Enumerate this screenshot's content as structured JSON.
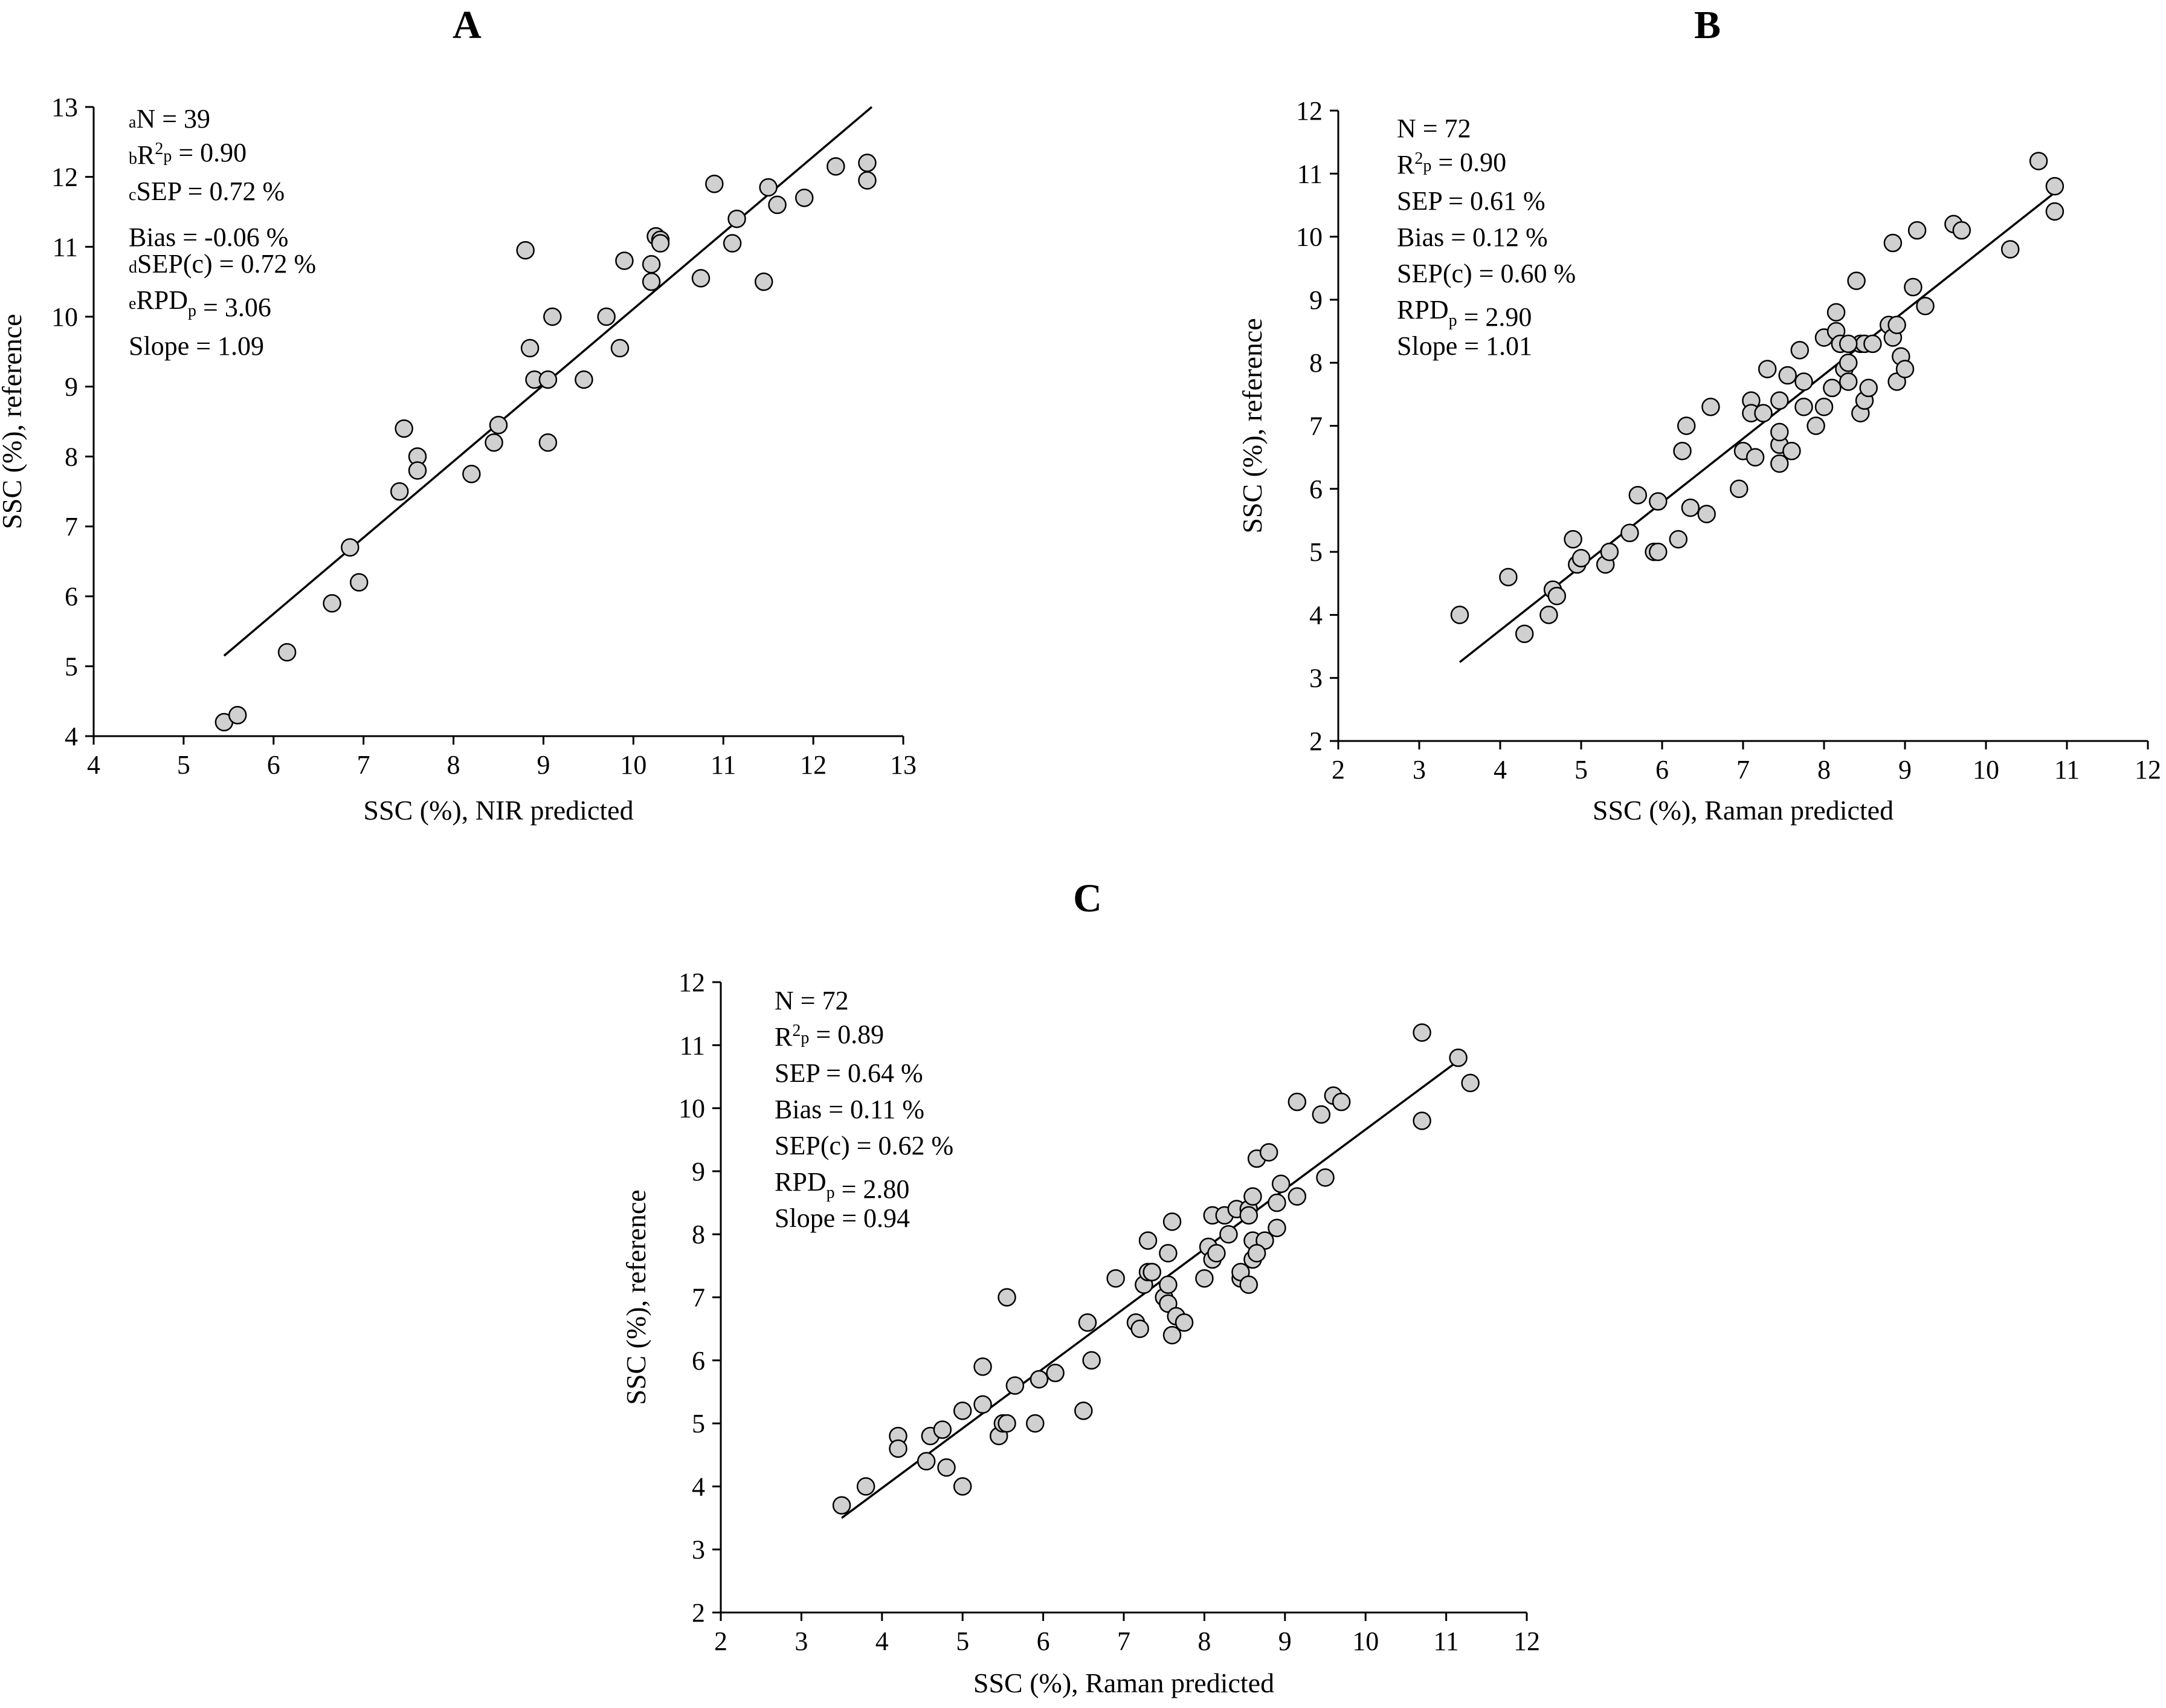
{
  "chart_data": [
    {
      "id": "A",
      "type": "scatter",
      "panel_label": "A",
      "xlabel": "SSC (%), NIR predicted",
      "ylabel": "SSC (%), reference",
      "xlim": [
        4,
        13
      ],
      "ylim": [
        4,
        13
      ],
      "xticks": [
        4,
        5,
        6,
        7,
        8,
        9,
        10,
        11,
        12,
        13
      ],
      "yticks": [
        4,
        5,
        6,
        7,
        8,
        9,
        10,
        11,
        12,
        13
      ],
      "stats": [
        {
          "sup": "a",
          "text": "N = 39"
        },
        {
          "sup": "b",
          "pre": "R",
          "mid_sup": "2",
          "sub": "p",
          "text": " = 0.90"
        },
        {
          "sup": "c",
          "text": "SEP = 0.72 %"
        },
        {
          "text": "Bias = -0.06 %"
        },
        {
          "sup": "d",
          "text": "SEP(c) = 0.72 %"
        },
        {
          "sup": "e",
          "pre": "RPD",
          "sub": "p",
          "text": " = 3.06"
        },
        {
          "text": "Slope = 1.09"
        }
      ],
      "fit_line": {
        "x": [
          5.45,
          12.65
        ],
        "y": [
          5.15,
          13.0
        ]
      },
      "points": [
        [
          5.45,
          4.2
        ],
        [
          5.6,
          4.3
        ],
        [
          6.15,
          5.2
        ],
        [
          6.65,
          5.9
        ],
        [
          6.85,
          6.7
        ],
        [
          6.95,
          6.2
        ],
        [
          7.4,
          7.5
        ],
        [
          7.45,
          8.4
        ],
        [
          7.6,
          8.0
        ],
        [
          7.6,
          7.8
        ],
        [
          8.2,
          7.75
        ],
        [
          8.45,
          8.2
        ],
        [
          8.5,
          8.45
        ],
        [
          8.8,
          10.95
        ],
        [
          8.85,
          9.55
        ],
        [
          8.9,
          9.1
        ],
        [
          9.05,
          8.2
        ],
        [
          9.05,
          9.1
        ],
        [
          9.1,
          10.0
        ],
        [
          9.45,
          9.1
        ],
        [
          9.7,
          10.0
        ],
        [
          9.85,
          9.55
        ],
        [
          9.9,
          10.8
        ],
        [
          10.2,
          10.5
        ],
        [
          10.2,
          10.75
        ],
        [
          10.25,
          11.15
        ],
        [
          10.3,
          11.1
        ],
        [
          10.3,
          11.05
        ],
        [
          10.75,
          10.55
        ],
        [
          10.9,
          11.9
        ],
        [
          11.1,
          11.05
        ],
        [
          11.15,
          11.4
        ],
        [
          11.45,
          10.5
        ],
        [
          11.5,
          11.85
        ],
        [
          11.6,
          11.6
        ],
        [
          11.9,
          11.7
        ],
        [
          12.25,
          12.15
        ],
        [
          12.6,
          12.2
        ],
        [
          12.6,
          11.95
        ]
      ]
    },
    {
      "id": "B",
      "type": "scatter",
      "panel_label": "B",
      "xlabel": "SSC (%), Raman predicted",
      "ylabel": "SSC (%), reference",
      "xlim": [
        2,
        12
      ],
      "ylim": [
        2,
        12
      ],
      "xticks": [
        2,
        3,
        4,
        5,
        6,
        7,
        8,
        9,
        10,
        11,
        12
      ],
      "yticks": [
        2,
        3,
        4,
        5,
        6,
        7,
        8,
        9,
        10,
        11,
        12
      ],
      "stats": [
        {
          "text": "N = 72"
        },
        {
          "pre": "R",
          "mid_sup": "2",
          "sub": "p",
          "text": " = 0.90"
        },
        {
          "text": "SEP = 0.61 %"
        },
        {
          "text": "Bias = 0.12 %"
        },
        {
          "text": "SEP(c) = 0.60 %"
        },
        {
          "pre": "RPD",
          "sub": "p",
          "text": " = 2.90"
        },
        {
          "text": "Slope = 1.01"
        }
      ],
      "fit_line": {
        "x": [
          3.5,
          10.9
        ],
        "y": [
          3.25,
          10.75
        ]
      },
      "points": [
        [
          3.5,
          4.0
        ],
        [
          4.1,
          4.6
        ],
        [
          4.3,
          3.7
        ],
        [
          4.6,
          4.0
        ],
        [
          4.65,
          4.4
        ],
        [
          4.7,
          4.3
        ],
        [
          4.9,
          5.2
        ],
        [
          4.95,
          4.8
        ],
        [
          5.0,
          4.9
        ],
        [
          5.3,
          4.8
        ],
        [
          5.35,
          5.0
        ],
        [
          5.6,
          5.3
        ],
        [
          5.7,
          5.9
        ],
        [
          5.9,
          5.0
        ],
        [
          5.95,
          5.8
        ],
        [
          5.95,
          5.0
        ],
        [
          6.2,
          5.2
        ],
        [
          6.25,
          6.6
        ],
        [
          6.3,
          7.0
        ],
        [
          6.35,
          5.7
        ],
        [
          6.55,
          5.6
        ],
        [
          6.6,
          7.3
        ],
        [
          6.95,
          6.0
        ],
        [
          7.0,
          6.6
        ],
        [
          7.1,
          7.4
        ],
        [
          7.1,
          7.2
        ],
        [
          7.15,
          6.5
        ],
        [
          7.25,
          7.2
        ],
        [
          7.3,
          7.9
        ],
        [
          7.45,
          7.4
        ],
        [
          7.45,
          6.7
        ],
        [
          7.45,
          6.9
        ],
        [
          7.45,
          6.4
        ],
        [
          7.55,
          7.8
        ],
        [
          7.6,
          6.6
        ],
        [
          7.7,
          8.2
        ],
        [
          7.75,
          7.3
        ],
        [
          7.75,
          7.7
        ],
        [
          7.9,
          7.0
        ],
        [
          8.0,
          8.4
        ],
        [
          8.0,
          7.3
        ],
        [
          8.1,
          7.6
        ],
        [
          8.15,
          8.5
        ],
        [
          8.15,
          8.8
        ],
        [
          8.2,
          8.3
        ],
        [
          8.25,
          7.9
        ],
        [
          8.3,
          8.0
        ],
        [
          8.3,
          7.7
        ],
        [
          8.4,
          9.3
        ],
        [
          8.45,
          8.3
        ],
        [
          8.45,
          7.2
        ],
        [
          8.5,
          7.4
        ],
        [
          8.5,
          8.3
        ],
        [
          8.55,
          7.6
        ],
        [
          8.6,
          8.3
        ],
        [
          8.8,
          8.6
        ],
        [
          8.85,
          8.4
        ],
        [
          8.85,
          9.9
        ],
        [
          8.9,
          7.7
        ],
        [
          8.9,
          8.6
        ],
        [
          8.95,
          8.1
        ],
        [
          9.0,
          7.9
        ],
        [
          9.1,
          9.2
        ],
        [
          9.15,
          10.1
        ],
        [
          9.25,
          8.9
        ],
        [
          9.6,
          10.2
        ],
        [
          9.7,
          10.1
        ],
        [
          10.3,
          9.8
        ],
        [
          10.65,
          11.2
        ],
        [
          10.85,
          10.8
        ],
        [
          10.85,
          10.4
        ],
        [
          8.3,
          8.3
        ]
      ]
    },
    {
      "id": "C",
      "type": "scatter",
      "panel_label": "C",
      "xlabel": "SSC (%), Raman predicted",
      "ylabel": "SSC (%), reference",
      "xlim": [
        2,
        12
      ],
      "ylim": [
        2,
        12
      ],
      "xticks": [
        2,
        3,
        4,
        5,
        6,
        7,
        8,
        9,
        10,
        11,
        12
      ],
      "yticks": [
        2,
        3,
        4,
        5,
        6,
        7,
        8,
        9,
        10,
        11,
        12
      ],
      "stats": [
        {
          "text": "N = 72"
        },
        {
          "pre": "R",
          "mid_sup": "2",
          "sub": "p",
          "text": " = 0.89"
        },
        {
          "text": "SEP = 0.64 %"
        },
        {
          "text": "Bias = 0.11 %"
        },
        {
          "text": "SEP(c) = 0.62 %"
        },
        {
          "pre": "RPD",
          "sub": "p",
          "text": " = 2.80"
        },
        {
          "text": "Slope = 0.94"
        }
      ],
      "fit_line": {
        "x": [
          3.5,
          11.2
        ],
        "y": [
          3.5,
          10.8
        ]
      },
      "points": [
        [
          3.5,
          3.7
        ],
        [
          3.8,
          4.0
        ],
        [
          4.2,
          4.8
        ],
        [
          4.2,
          4.6
        ],
        [
          4.55,
          4.4
        ],
        [
          4.6,
          4.8
        ],
        [
          4.75,
          4.9
        ],
        [
          4.8,
          4.3
        ],
        [
          5.0,
          5.2
        ],
        [
          5.0,
          4.0
        ],
        [
          5.25,
          5.3
        ],
        [
          5.25,
          5.9
        ],
        [
          5.45,
          4.8
        ],
        [
          5.5,
          5.0
        ],
        [
          5.55,
          5.0
        ],
        [
          5.55,
          7.0
        ],
        [
          5.65,
          5.6
        ],
        [
          5.9,
          5.0
        ],
        [
          5.95,
          5.7
        ],
        [
          6.15,
          5.8
        ],
        [
          6.5,
          5.2
        ],
        [
          6.55,
          6.6
        ],
        [
          6.6,
          6.0
        ],
        [
          6.9,
          7.3
        ],
        [
          7.15,
          6.6
        ],
        [
          7.2,
          6.5
        ],
        [
          7.25,
          7.2
        ],
        [
          7.3,
          7.9
        ],
        [
          7.3,
          7.4
        ],
        [
          7.35,
          7.4
        ],
        [
          7.5,
          7.0
        ],
        [
          7.55,
          7.7
        ],
        [
          7.55,
          7.2
        ],
        [
          7.55,
          6.9
        ],
        [
          7.6,
          6.4
        ],
        [
          7.6,
          8.2
        ],
        [
          7.65,
          6.7
        ],
        [
          7.75,
          6.6
        ],
        [
          8.0,
          7.3
        ],
        [
          8.05,
          7.8
        ],
        [
          8.1,
          8.3
        ],
        [
          8.1,
          7.6
        ],
        [
          8.15,
          7.7
        ],
        [
          8.25,
          8.3
        ],
        [
          8.3,
          8.0
        ],
        [
          8.4,
          8.4
        ],
        [
          8.45,
          7.3
        ],
        [
          8.45,
          7.4
        ],
        [
          8.55,
          7.2
        ],
        [
          8.55,
          8.4
        ],
        [
          8.55,
          8.3
        ],
        [
          8.6,
          7.9
        ],
        [
          8.6,
          8.6
        ],
        [
          8.6,
          7.6
        ],
        [
          8.65,
          9.2
        ],
        [
          8.75,
          7.9
        ],
        [
          8.8,
          9.3
        ],
        [
          8.9,
          8.5
        ],
        [
          8.9,
          8.1
        ],
        [
          8.95,
          8.8
        ],
        [
          9.15,
          8.6
        ],
        [
          9.15,
          10.1
        ],
        [
          9.45,
          9.9
        ],
        [
          9.5,
          8.9
        ],
        [
          9.6,
          10.2
        ],
        [
          9.7,
          10.1
        ],
        [
          10.7,
          11.2
        ],
        [
          10.7,
          9.8
        ],
        [
          11.15,
          10.8
        ],
        [
          11.3,
          10.4
        ],
        [
          8.65,
          7.7
        ],
        [
          7.35,
          7.4
        ]
      ]
    }
  ]
}
